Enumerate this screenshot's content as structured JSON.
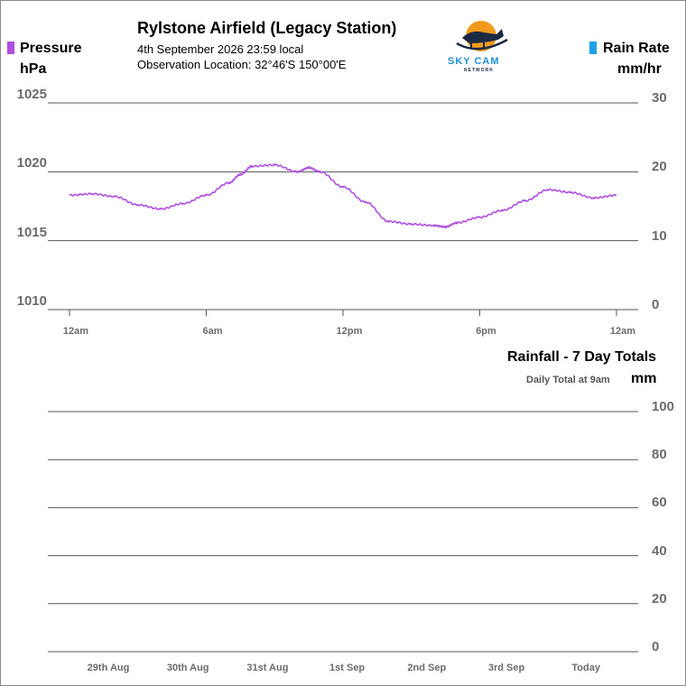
{
  "header": {
    "title": "Rylstone Airfield (Legacy Station)",
    "timestamp": "4th September 2026  23:59 local",
    "location": "Observation Location: 32°46'S 150°00'E"
  },
  "logo": {
    "name": "SKY CAM",
    "tagline": "NETWORK"
  },
  "legend": {
    "left_label": "Pressure",
    "left_unit": "hPa",
    "left_color": "#b04ee0",
    "right_label": "Rain Rate",
    "right_unit": "mm/hr",
    "right_color": "#1ea0e6"
  },
  "rainfall_panel": {
    "title": "Rainfall - 7 Day Totals",
    "note": "Daily Total at 9am",
    "unit": "mm"
  },
  "chart_data": [
    {
      "type": "line",
      "x_ticks": [
        "12am",
        "6am",
        "12pm",
        "6pm",
        "12am"
      ],
      "x_range_hours": [
        0,
        24
      ],
      "y_left_ticks": [
        "1025",
        "1020",
        "1015",
        "1010"
      ],
      "y_left_range": [
        1010,
        1025
      ],
      "y_right_ticks": [
        "30",
        "20",
        "10",
        "0"
      ],
      "grid": true,
      "series": [
        {
          "name": "Pressure",
          "color": "#b04ee0",
          "x": [
            0,
            1,
            2,
            3,
            4,
            5,
            6,
            7,
            7.5,
            8,
            9,
            10,
            10.5,
            11,
            12,
            13,
            14,
            15,
            16,
            16.5,
            17,
            18,
            19,
            20,
            21,
            22,
            23,
            24
          ],
          "y": [
            1018.3,
            1018.4,
            1018.2,
            1017.6,
            1017.3,
            1017.7,
            1018.3,
            1019.2,
            1019.8,
            1020.4,
            1020.5,
            1020.0,
            1020.3,
            1020.0,
            1018.9,
            1017.8,
            1016.4,
            1016.2,
            1016.1,
            1016.0,
            1016.3,
            1016.7,
            1017.2,
            1017.9,
            1018.7,
            1018.5,
            1018.1,
            1018.3
          ]
        },
        {
          "name": "Rain Rate",
          "color": "#1ea0e6",
          "x": [],
          "y": []
        }
      ]
    },
    {
      "type": "bar",
      "title": "Rainfall - 7 Day Totals",
      "categories": [
        "29th Aug",
        "30th Aug",
        "31st Aug",
        "1st Sep",
        "2nd Sep",
        "3rd Sep",
        "Today"
      ],
      "values": [
        0,
        0,
        0,
        0,
        0,
        0,
        0
      ],
      "y_ticks": [
        "100",
        "80",
        "60",
        "40",
        "20",
        "0"
      ],
      "ylim": [
        0,
        100
      ],
      "ylabel": "mm",
      "grid": true
    }
  ]
}
